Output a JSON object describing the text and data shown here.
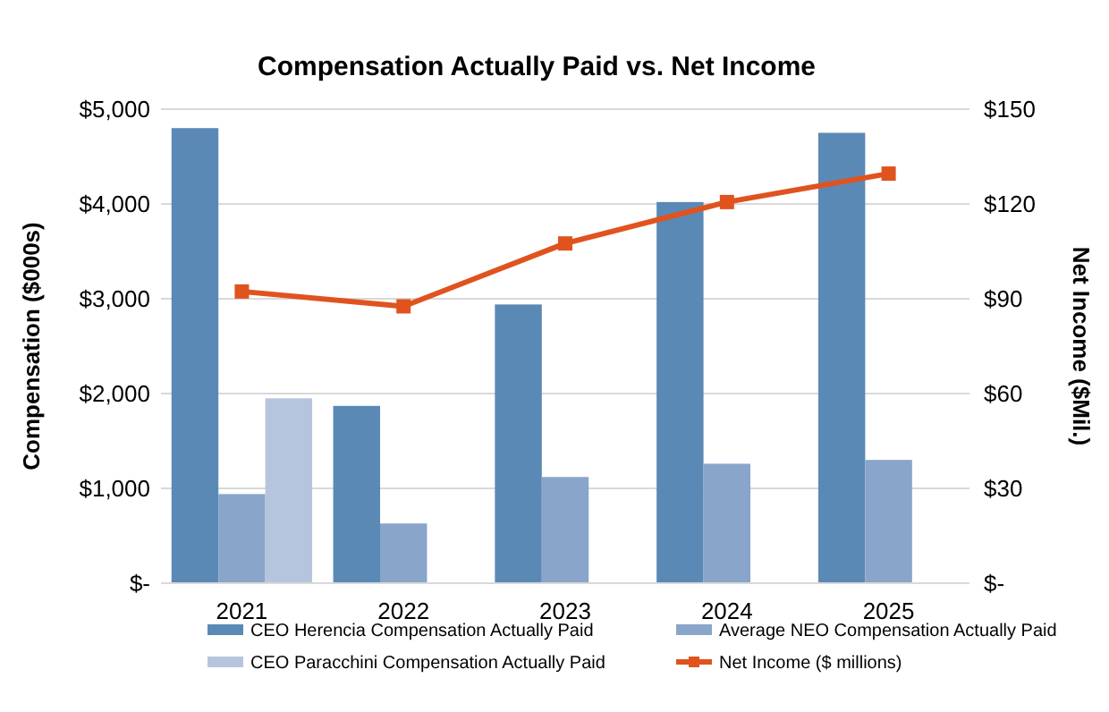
{
  "chart_data": {
    "type": "bar",
    "title": "Compensation Actually Paid vs. Net Income",
    "ylabel": "Compensation ($000s)",
    "y2label": "Net Income ($Mil.)",
    "categories": [
      "2021",
      "2022",
      "2023",
      "2024",
      "2025"
    ],
    "series": [
      {
        "name": "CEO Herencia Compensation Actually Paid",
        "color": "#5b89b6",
        "values": [
          4800,
          1870,
          2940,
          4020,
          4750
        ]
      },
      {
        "name": "Average NEO Compensation Actually Paid",
        "color": "#89a5c9",
        "values": [
          940,
          630,
          1120,
          1260,
          1300
        ]
      },
      {
        "name": "CEO Paracchini Compensation Actually Paid",
        "color": "#b5c5de",
        "values": [
          1950,
          null,
          null,
          null,
          null
        ]
      },
      {
        "name": "Net Income ($ millions)",
        "type": "line",
        "axis": "y2",
        "color": "#e0531f",
        "marker": "square",
        "values": [
          92.3,
          87.6,
          107.5,
          120.6,
          129.6
        ]
      }
    ],
    "ylim": [
      0,
      5000
    ],
    "yticks": [
      {
        "value": 0,
        "label": "$-"
      },
      {
        "value": 1000,
        "label": "$1,000"
      },
      {
        "value": 2000,
        "label": "$2,000"
      },
      {
        "value": 3000,
        "label": "$3,000"
      },
      {
        "value": 4000,
        "label": "$4,000"
      },
      {
        "value": 5000,
        "label": "$5,000"
      }
    ],
    "y2lim": [
      0,
      150
    ],
    "y2ticks": [
      {
        "value": 0,
        "label": "$-"
      },
      {
        "value": 30,
        "label": "$30"
      },
      {
        "value": 60,
        "label": "$60"
      },
      {
        "value": 90,
        "label": "$90"
      },
      {
        "value": 120,
        "label": "$120"
      },
      {
        "value": 150,
        "label": "$150"
      }
    ],
    "grid": "y",
    "legend": "bottom"
  }
}
